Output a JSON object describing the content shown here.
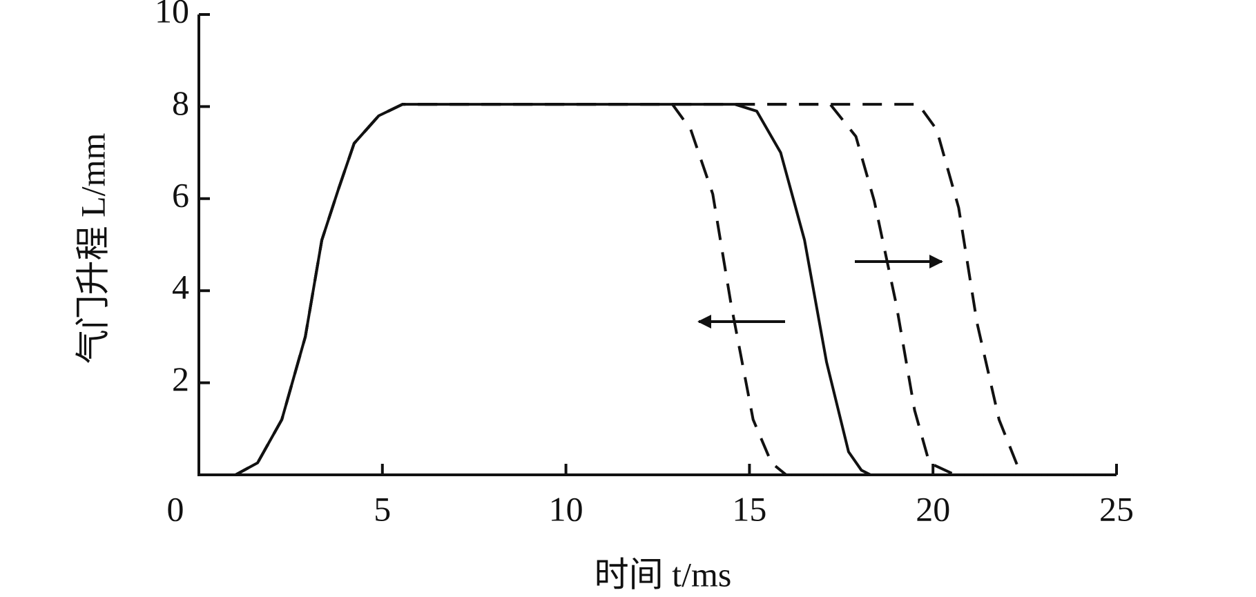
{
  "chart_data": {
    "type": "line",
    "x_label": "时间 t/ms",
    "y_label": "气门升程 L/mm",
    "xlim": [
      0,
      25
    ],
    "xticks": [
      0,
      5,
      10,
      15,
      20,
      25
    ],
    "ylim": [
      0,
      10
    ],
    "yticks": [
      2,
      4,
      6,
      8,
      10
    ],
    "series": [
      {
        "style": "solid",
        "color": "#111111",
        "x": [
          0,
          1,
          1.6,
          2.26,
          2.9,
          3.35,
          3.8,
          4.23,
          4.9,
          5.55,
          6,
          14,
          14.6,
          15.2,
          15.85,
          16.5,
          17.1,
          17.7,
          18.05,
          18.3,
          25
        ],
        "values": [
          0,
          0,
          0.26,
          1.2,
          3.0,
          5.1,
          6.2,
          7.2,
          7.8,
          8.05,
          8.05,
          8.05,
          8.05,
          7.9,
          7.0,
          5.1,
          2.45,
          0.5,
          0.1,
          0,
          0
        ]
      },
      {
        "style": "dashed",
        "color": "#111111",
        "x": [
          0,
          1,
          1.6,
          2.26,
          2.9,
          3.35,
          3.8,
          4.23,
          4.9,
          5.55,
          6,
          12.9,
          13.4,
          14.0,
          14.5,
          15.1,
          15.6,
          16.0,
          25
        ],
        "values": [
          0,
          0,
          0.26,
          1.2,
          3.0,
          5.1,
          6.2,
          7.2,
          7.8,
          8.05,
          8.05,
          8.05,
          7.5,
          6.1,
          3.7,
          1.2,
          0.26,
          0,
          0
        ]
      },
      {
        "style": "dashed",
        "color": "#111111",
        "x": [
          0,
          1,
          1.6,
          2.26,
          2.9,
          3.35,
          3.8,
          4.23,
          4.9,
          5.55,
          6,
          17.2,
          17.9,
          18.4,
          19.0,
          19.5,
          19.9,
          20.6,
          25
        ],
        "values": [
          0,
          0,
          0.26,
          1.2,
          3.0,
          5.1,
          6.2,
          7.2,
          7.8,
          8.05,
          8.05,
          8.05,
          7.35,
          5.95,
          3.7,
          1.4,
          0.26,
          0,
          0
        ]
      },
      {
        "style": "dashed",
        "color": "#111111",
        "x": [
          0,
          1,
          1.6,
          2.26,
          2.9,
          3.35,
          3.8,
          4.23,
          4.9,
          5.55,
          6,
          19.6,
          20.1,
          20.7,
          21.2,
          21.8,
          22.4,
          25
        ],
        "values": [
          0,
          0,
          0.26,
          1.2,
          3.0,
          5.1,
          6.2,
          7.2,
          7.8,
          8.05,
          8.05,
          8.05,
          7.5,
          5.8,
          3.3,
          1.2,
          0,
          0
        ]
      }
    ]
  }
}
